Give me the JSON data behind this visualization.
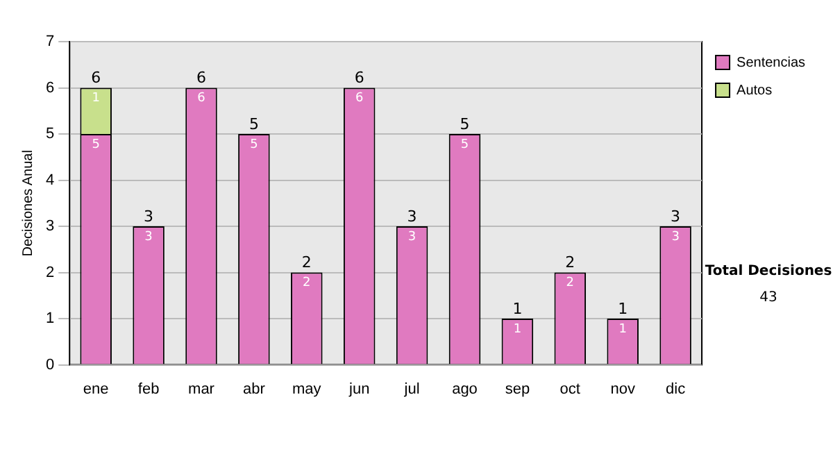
{
  "chart_data": {
    "type": "bar",
    "stacked": true,
    "ylabel": "Decisiones Anual",
    "categories": [
      "ene",
      "feb",
      "mar",
      "abr",
      "may",
      "jun",
      "jul",
      "ago",
      "sep",
      "oct",
      "nov",
      "dic"
    ],
    "series": [
      {
        "name": "Sentencias",
        "color": "#e07ac0",
        "values": [
          5,
          3,
          6,
          5,
          2,
          6,
          3,
          5,
          1,
          2,
          1,
          3
        ]
      },
      {
        "name": "Autos",
        "color": "#c8e08c",
        "values": [
          1,
          null,
          null,
          null,
          null,
          null,
          null,
          null,
          null,
          null,
          null,
          null
        ]
      }
    ],
    "totals": [
      "6",
      "3",
      "6",
      "5",
      "2",
      "6",
      "3",
      "5",
      "1",
      "2",
      "1",
      "3"
    ],
    "data_labels": true,
    "ylim": [
      0,
      7
    ],
    "yticks": [
      0,
      1,
      2,
      3,
      4,
      5,
      6,
      7
    ],
    "grid": "y",
    "legend": "right",
    "annotations": [
      "Total Decisiones",
      "43"
    ]
  }
}
